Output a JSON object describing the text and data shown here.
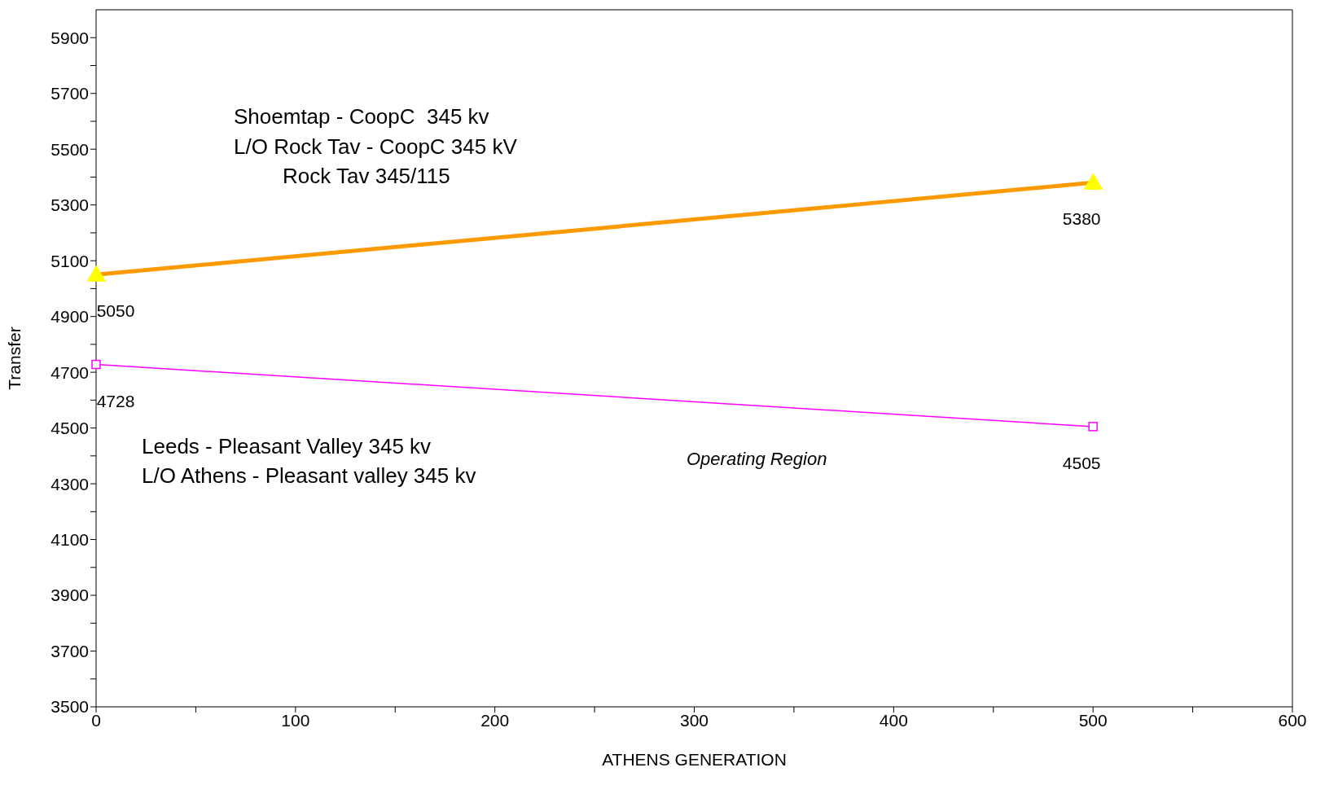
{
  "chart_data": {
    "type": "line",
    "xlabel": "ATHENS GENERATION",
    "ylabel": "Transfer",
    "x": [
      0,
      500
    ],
    "series": [
      {
        "color": "#ff9900",
        "colors": [
          "#ffff00",
          "#ffff00"
        ],
        "marker": "triangle",
        "values": [
          5050,
          5380
        ]
      },
      {
        "color": "#ff00ff",
        "marker": "square",
        "values": [
          4728,
          4505
        ]
      }
    ],
    "data_labels": true,
    "grid": false,
    "legend": false,
    "xlim": [
      0,
      600
    ],
    "xticks": [
      0,
      {
        "value": 50,
        "label": null
      },
      100,
      {
        "value": 150,
        "label": null
      },
      200,
      {
        "value": 250,
        "label": null
      },
      300,
      {
        "value": 350,
        "label": null
      },
      400,
      {
        "value": 450,
        "label": null
      },
      500,
      {
        "value": 550,
        "label": null
      },
      600
    ],
    "ylim": [
      3500,
      6000
    ],
    "yticks": [
      3500,
      {
        "value": 3600,
        "label": null
      },
      3700,
      {
        "value": 3800,
        "label": null
      },
      3900,
      {
        "value": 4000,
        "label": null
      },
      4100,
      {
        "value": 4200,
        "label": null
      },
      4300,
      {
        "value": 4400,
        "label": null
      },
      4500,
      {
        "value": 4600,
        "label": null
      },
      4700,
      {
        "value": 4800,
        "label": null
      },
      4900,
      {
        "value": 5000,
        "label": null
      },
      5100,
      {
        "value": 5200,
        "label": null
      },
      5300,
      {
        "value": 5400,
        "label": null
      },
      5500,
      {
        "value": 5600,
        "label": null
      },
      5700,
      {
        "value": 5800,
        "label": null
      },
      5900
    ],
    "annotations": [
      "Shoemtap - CoopC  345 kv",
      "L/O Rock Tav - CoopC 345 kV",
      "Rock Tav 345/115",
      "Leeds - Pleasant Valley 345 kv",
      "L/O Athens - Pleasant valley 345 kv",
      "Operating Region"
    ]
  }
}
